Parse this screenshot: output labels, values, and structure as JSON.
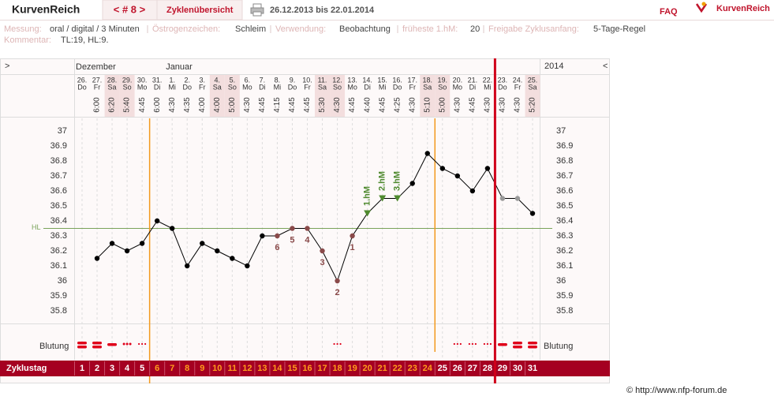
{
  "header": {
    "brand": "KurvenReich",
    "cycle_nav": "< # 8 >",
    "overview": "Zyklenübersicht",
    "date_range": "26.12.2013 bis 22.01.2014",
    "faq": "FAQ",
    "logo": "KurvenReich"
  },
  "info": [
    {
      "label": "Messung:",
      "value": "oral / digital / 3 Minuten"
    },
    {
      "label": "Östrogenzeichen:",
      "value": "Schleim"
    },
    {
      "label": "Verwendung:",
      "value": "Beobachtung"
    },
    {
      "label": "früheste 1.hM:",
      "value": 20
    },
    {
      "label": "Freigabe Zyklusanfang:",
      "value": "5-Tage-Regel"
    }
  ],
  "comment": {
    "label": "Kommentar:",
    "value": "TL:19, HL:9."
  },
  "chart_data": {
    "type": "line",
    "nav_left": ">",
    "nav_right": "<",
    "months": [
      "Dezember",
      "Januar"
    ],
    "year": "2014",
    "categories": [
      "26.",
      "27.",
      "28.",
      "29.",
      "30.",
      "31.",
      "1.",
      "2.",
      "3.",
      "4.",
      "5.",
      "6.",
      "7.",
      "8.",
      "9.",
      "10.",
      "11.",
      "12.",
      "13.",
      "14.",
      "15.",
      "16.",
      "17.",
      "18.",
      "19.",
      "20.",
      "21.",
      "22.",
      "23.",
      "24.",
      "25."
    ],
    "weekdays": [
      "Do",
      "Fr",
      "Sa",
      "So",
      "Mo",
      "Di",
      "Mi",
      "Do",
      "Fr",
      "Sa",
      "So",
      "Mo",
      "Di",
      "Mi",
      "Do",
      "Fr",
      "Sa",
      "So",
      "Mo",
      "Di",
      "Mi",
      "Do",
      "Fr",
      "Sa",
      "So",
      "Mo",
      "Di",
      "Mi",
      "Do",
      "Fr",
      "Sa"
    ],
    "times": [
      null,
      "6:00",
      "6:20",
      "5:40",
      "4:45",
      "6:00",
      "4:30",
      "4:35",
      "4:00",
      "4:00",
      "5:00",
      "4:30",
      "4:45",
      "4:15",
      "4:45",
      "4:45",
      "5:30",
      "4:30",
      "4:45",
      "4:40",
      "4:45",
      "4:25",
      "4:30",
      "5:10",
      "5:00",
      "4:30",
      "4:45",
      "4:30",
      "4:30",
      "4:30",
      "5:20"
    ],
    "values": [
      null,
      36.15,
      36.25,
      36.2,
      36.25,
      36.4,
      36.35,
      36.1,
      36.25,
      36.2,
      36.15,
      36.1,
      36.3,
      36.3,
      36.35,
      36.35,
      36.2,
      36,
      36.3,
      36.45,
      36.55,
      36.55,
      36.65,
      36.85,
      36.75,
      36.7,
      36.6,
      36.75,
      36.55,
      36.55,
      36.45
    ],
    "marker_colors": [
      null,
      "#000000",
      "#000000",
      "#000000",
      "#000000",
      "#000000",
      "#000000",
      "#000000",
      "#000000",
      "#000000",
      "#000000",
      "#000000",
      "#000000",
      "#8a4a4a",
      "#8a4a4a",
      "#8a4a4a",
      "#8a4a4a",
      "#8a4a4a",
      "#8a4a4a",
      "#4f8a2f",
      "#4f8a2f",
      "#4f8a2f",
      "#000000",
      "#000000",
      "#000000",
      "#000000",
      "#000000",
      "#000000",
      "#999999",
      "#999999",
      "#000000"
    ],
    "point_labels": [
      null,
      null,
      null,
      null,
      null,
      null,
      null,
      null,
      null,
      null,
      null,
      null,
      null,
      "6",
      "5",
      "4",
      "3",
      "2",
      "1",
      "1.hM",
      "2.hM",
      "3.hM",
      null,
      null,
      null,
      null,
      null,
      null,
      null,
      null,
      null
    ],
    "color": "#000000",
    "ylim": [
      35.7,
      37.1
    ],
    "yticks": [
      35.8,
      35.9,
      36,
      36.1,
      36.2,
      36.3,
      36.4,
      36.5,
      36.6,
      36.7,
      36.8,
      36.9,
      37
    ],
    "hl_label": "HL",
    "hl_value": 36.35,
    "bleeding_label": "Blutung",
    "bleeding": [
      4,
      4,
      3,
      2,
      1,
      null,
      null,
      null,
      null,
      null,
      null,
      null,
      null,
      null,
      null,
      null,
      null,
      1,
      null,
      null,
      null,
      null,
      null,
      null,
      null,
      1,
      1,
      1,
      3,
      4,
      4
    ],
    "cycle_day_label": "Zyklustag",
    "cycle_days": [
      1,
      2,
      3,
      4,
      5,
      6,
      7,
      8,
      9,
      10,
      11,
      12,
      13,
      14,
      15,
      16,
      17,
      18,
      19,
      20,
      21,
      22,
      23,
      24,
      25,
      26,
      27,
      28,
      29,
      30,
      31
    ],
    "infertile_until": 5,
    "infertile_from": 25,
    "current_day": 28
  },
  "footer": "© http://www.nfp-forum.de"
}
